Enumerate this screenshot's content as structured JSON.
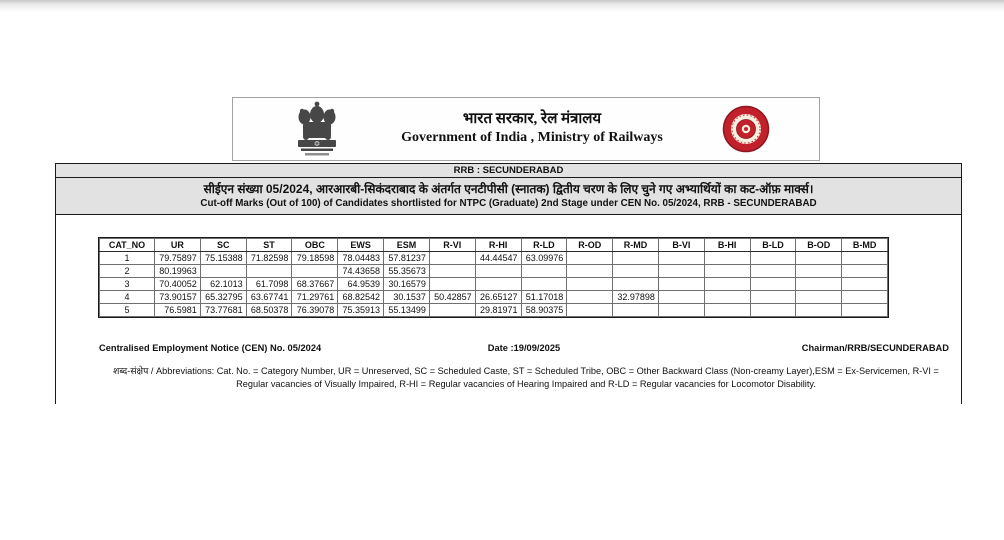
{
  "page": {
    "header": {
      "hindi_title": "भारत सरकार, रेल मंत्रालय",
      "english_title": "Government of India , Ministry of Railways",
      "emblem_icon": "indian-national-emblem",
      "railway_logo_icon": "indian-railways-logo"
    },
    "banner": {
      "rrb_line": "RRB : SECUNDERABAD",
      "hindi_subtitle": "सीईएन संख्या 05/2024, आरआरबी-सिकंदराबाद के अंतर्गत एनटीपीसी (स्नातक) द्वितीय चरण के लिए चुने गए अभ्यार्थियों का कट-ऑफ़ मार्क्स।",
      "english_subtitle": "Cut-off Marks (Out of 100) of Candidates shortlisted for NTPC (Graduate) 2nd Stage under CEN No. 05/2024, RRB - SECUNDERABAD"
    },
    "table": {
      "headers": [
        "CAT_NO",
        "UR",
        "SC",
        "ST",
        "OBC",
        "EWS",
        "ESM",
        "R-VI",
        "R-HI",
        "R-LD",
        "R-OD",
        "R-MD",
        "B-VI",
        "B-HI",
        "B-LD",
        "B-OD",
        "B-MD"
      ],
      "rows": [
        [
          "1",
          "79.75897",
          "75.15388",
          "71.82598",
          "79.18598",
          "78.04483",
          "57.81237",
          "",
          "44.44547",
          "63.09976",
          "",
          "",
          "",
          "",
          "",
          "",
          ""
        ],
        [
          "2",
          "80.19963",
          "",
          "",
          "",
          "74.43658",
          "55.35673",
          "",
          "",
          "",
          "",
          "",
          "",
          "",
          "",
          "",
          ""
        ],
        [
          "3",
          "70.40052",
          "62.1013",
          "61.7098",
          "68.37667",
          "64.9539",
          "30.16579",
          "",
          "",
          "",
          "",
          "",
          "",
          "",
          "",
          "",
          ""
        ],
        [
          "4",
          "73.90157",
          "65.32795",
          "63.67741",
          "71.29761",
          "68.82542",
          "30.1537",
          "50.42857",
          "26.65127",
          "51.17018",
          "",
          "32.97898",
          "",
          "",
          "",
          "",
          ""
        ],
        [
          "5",
          "76.5981",
          "73.77681",
          "68.50378",
          "76.39078",
          "75.35913",
          "55.13499",
          "",
          "29.81971",
          "58.90375",
          "",
          "",
          "",
          "",
          "",
          "",
          ""
        ]
      ]
    },
    "footer": {
      "cen_notice": "Centralised Employment Notice (CEN) No. 05/2024",
      "date": "Date :19/09/2025",
      "chairman": "Chairman/RRB/SECUNDERABAD",
      "abbreviations": "शब्द-संक्षेप / Abbreviations: Cat. No. = Category Number, UR = Unreserved, SC = Scheduled Caste, ST = Scheduled Tribe, OBC = Other Backward Class (Non-creamy Layer),ESM = Ex-Servicemen, R-VI = Regular vacancies of Visually Impaired, R-HI = Regular vacancies of Hearing Impaired and R-LD = Regular vacancies for Locomotor Disability."
    },
    "colors": {
      "bar_bg": "#e2e2e2",
      "logo_red": "#c2202b",
      "border_dark": "#1a1a1a",
      "grid_gray": "#6f6f6f"
    }
  }
}
